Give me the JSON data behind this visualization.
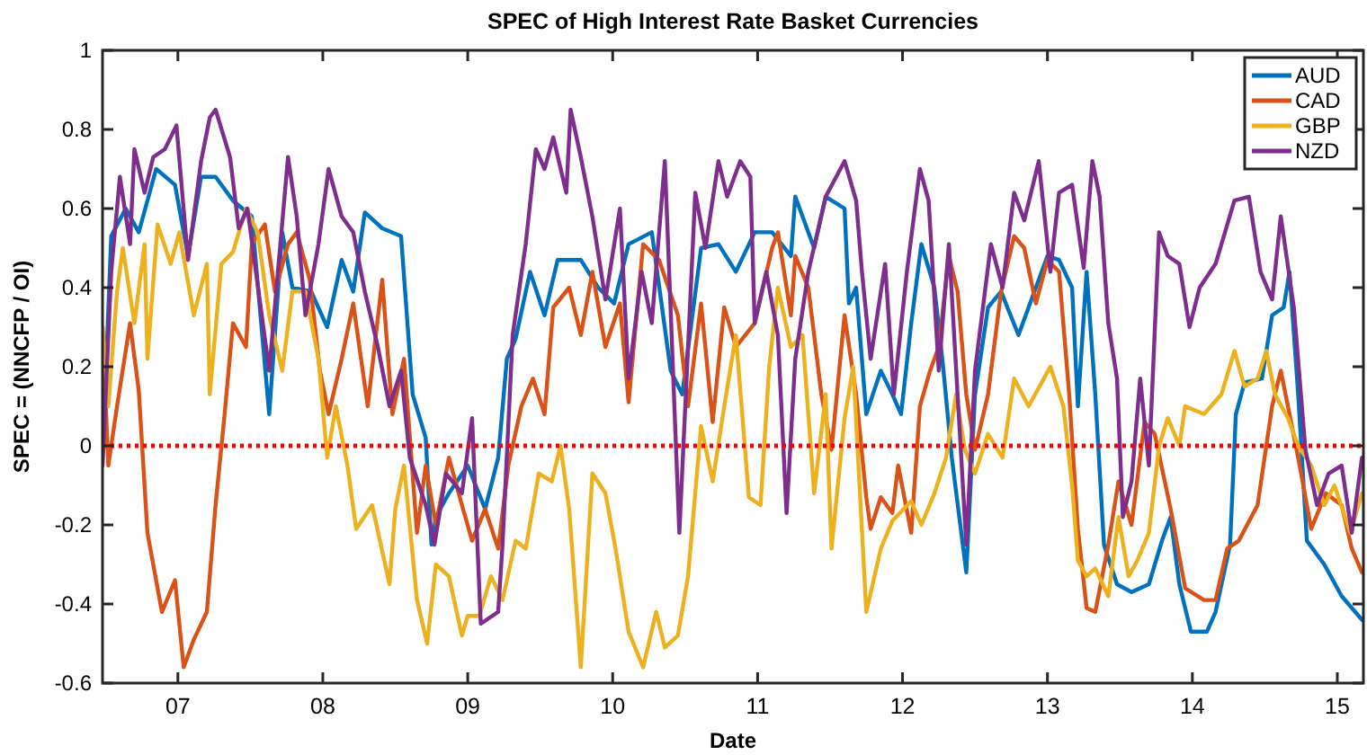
{
  "chart_data": {
    "type": "line",
    "title": "SPEC of High Interest Rate Basket Currencies",
    "xlabel": "Date",
    "ylabel": "SPEC = (NNCFP / OI)",
    "xlim": [
      2006.48,
      2015.18
    ],
    "ylim": [
      -0.6,
      1
    ],
    "xticks": [
      {
        "value": 2007,
        "label": "07"
      },
      {
        "value": 2008,
        "label": "08"
      },
      {
        "value": 2009,
        "label": "09"
      },
      {
        "value": 2010,
        "label": "10"
      },
      {
        "value": 2011,
        "label": "11"
      },
      {
        "value": 2012,
        "label": "12"
      },
      {
        "value": 2013,
        "label": "13"
      },
      {
        "value": 2014,
        "label": "14"
      },
      {
        "value": 2015,
        "label": "15"
      }
    ],
    "yticks": [
      -0.6,
      -0.4,
      -0.2,
      0,
      0.2,
      0.4,
      0.6,
      0.8,
      1
    ],
    "legend": "top right",
    "marker": "none",
    "line_style": "solid",
    "ref_lines": [
      {
        "axis": "y",
        "value": 0,
        "color": "#ff0000",
        "line_style": "dotted"
      }
    ],
    "series": [
      {
        "name": "AUD",
        "color": "#0072bd",
        "x": [
          2006.48,
          2006.54,
          2006.64,
          2006.73,
          2006.85,
          2006.98,
          2007.07,
          2007.16,
          2007.26,
          2007.38,
          2007.51,
          2007.63,
          2007.72,
          2007.79,
          2007.92,
          2008.03,
          2008.13,
          2008.21,
          2008.29,
          2008.41,
          2008.54,
          2008.62,
          2008.71,
          2008.75,
          2008.78,
          2008.87,
          2009.0,
          2009.12,
          2009.21,
          2009.27,
          2009.33,
          2009.43,
          2009.53,
          2009.62,
          2009.78,
          2009.9,
          2010.01,
          2010.11,
          2010.27,
          2010.4,
          2010.48,
          2010.61,
          2010.73,
          2010.85,
          2010.98,
          2011.1,
          2011.23,
          2011.26,
          2011.39,
          2011.47,
          2011.6,
          2011.63,
          2011.68,
          2011.75,
          2011.85,
          2011.93,
          2011.99,
          2012.06,
          2012.13,
          2012.22,
          2012.28,
          2012.34,
          2012.44,
          2012.5,
          2012.59,
          2012.68,
          2012.8,
          2012.92,
          2013.0,
          2013.08,
          2013.17,
          2013.21,
          2013.27,
          2013.33,
          2013.39,
          2013.48,
          2013.58,
          2013.7,
          2013.79,
          2013.85,
          2013.91,
          2013.99,
          2014.1,
          2014.16,
          2014.26,
          2014.3,
          2014.36,
          2014.48,
          2014.55,
          2014.63,
          2014.67,
          2014.73,
          2014.79,
          2014.91,
          2015.03,
          2015.17
        ],
        "values": [
          -0.03,
          0.53,
          0.6,
          0.54,
          0.7,
          0.66,
          0.48,
          0.68,
          0.68,
          0.62,
          0.58,
          0.08,
          0.54,
          0.4,
          0.39,
          0.3,
          0.47,
          0.39,
          0.59,
          0.55,
          0.53,
          0.13,
          0.02,
          -0.25,
          -0.18,
          -0.12,
          -0.05,
          -0.16,
          -0.03,
          0.22,
          0.27,
          0.44,
          0.33,
          0.47,
          0.47,
          0.4,
          0.36,
          0.51,
          0.54,
          0.19,
          0.13,
          0.5,
          0.51,
          0.44,
          0.54,
          0.54,
          0.48,
          0.63,
          0.5,
          0.63,
          0.6,
          0.36,
          0.4,
          0.08,
          0.19,
          0.13,
          0.08,
          0.31,
          0.51,
          0.4,
          0.2,
          -0.03,
          -0.32,
          0.13,
          0.35,
          0.39,
          0.28,
          0.4,
          0.48,
          0.47,
          0.4,
          0.1,
          0.44,
          0.13,
          -0.25,
          -0.35,
          -0.37,
          -0.35,
          -0.24,
          -0.18,
          -0.35,
          -0.47,
          -0.47,
          -0.42,
          -0.25,
          0.08,
          0.16,
          0.17,
          0.33,
          0.35,
          0.44,
          0.13,
          -0.24,
          -0.3,
          -0.38,
          -0.44
        ]
      },
      {
        "name": "CAD",
        "color": "#d95319",
        "x": [
          2006.48,
          2006.52,
          2006.58,
          2006.67,
          2006.73,
          2006.79,
          2006.89,
          2006.98,
          2007.04,
          2007.11,
          2007.2,
          2007.26,
          2007.32,
          2007.38,
          2007.47,
          2007.51,
          2007.6,
          2007.67,
          2007.76,
          2007.82,
          2007.91,
          2007.98,
          2008.04,
          2008.13,
          2008.21,
          2008.31,
          2008.41,
          2008.48,
          2008.56,
          2008.65,
          2008.71,
          2008.78,
          2008.87,
          2008.96,
          2009.03,
          2009.12,
          2009.21,
          2009.28,
          2009.37,
          2009.45,
          2009.53,
          2009.59,
          2009.7,
          2009.78,
          2009.86,
          2009.95,
          2010.05,
          2010.11,
          2010.21,
          2010.32,
          2010.45,
          2010.52,
          2010.61,
          2010.69,
          2010.77,
          2010.85,
          2010.98,
          2011.1,
          2011.14,
          2011.23,
          2011.26,
          2011.35,
          2011.44,
          2011.51,
          2011.6,
          2011.68,
          2011.75,
          2011.78,
          2011.85,
          2011.93,
          2011.97,
          2012.06,
          2012.12,
          2012.19,
          2012.25,
          2012.32,
          2012.38,
          2012.44,
          2012.5,
          2012.59,
          2012.68,
          2012.77,
          2012.84,
          2012.92,
          2013.0,
          2013.08,
          2013.15,
          2013.21,
          2013.27,
          2013.33,
          2013.42,
          2013.49,
          2013.58,
          2013.67,
          2013.74,
          2013.85,
          2013.95,
          2014.08,
          2014.16,
          2014.24,
          2014.32,
          2014.45,
          2014.55,
          2014.61,
          2014.67,
          2014.73,
          2014.82,
          2014.92,
          2015.03,
          2015.1,
          2015.17
        ],
        "values": [
          0.3,
          -0.05,
          0.1,
          0.31,
          0.14,
          -0.22,
          -0.42,
          -0.34,
          -0.56,
          -0.49,
          -0.42,
          -0.15,
          0.07,
          0.31,
          0.25,
          0.51,
          0.56,
          0.39,
          0.51,
          0.54,
          0.42,
          0.19,
          0.08,
          0.22,
          0.36,
          0.1,
          0.42,
          0.08,
          0.22,
          -0.22,
          -0.05,
          -0.2,
          -0.03,
          -0.15,
          -0.24,
          -0.16,
          -0.26,
          -0.05,
          0.1,
          0.17,
          0.08,
          0.35,
          0.4,
          0.28,
          0.44,
          0.25,
          0.36,
          0.11,
          0.51,
          0.47,
          0.33,
          0.1,
          0.36,
          0.06,
          0.35,
          0.25,
          0.31,
          0.5,
          0.54,
          0.33,
          0.48,
          0.4,
          0.13,
          -0.01,
          0.33,
          0.13,
          -0.13,
          -0.21,
          -0.13,
          -0.17,
          -0.05,
          -0.22,
          0.1,
          0.19,
          0.25,
          0.48,
          0.39,
          0.13,
          -0.01,
          0.13,
          0.39,
          0.53,
          0.5,
          0.36,
          0.47,
          0.44,
          0.13,
          -0.21,
          -0.41,
          -0.42,
          -0.25,
          -0.09,
          -0.2,
          0.06,
          0.03,
          -0.16,
          -0.36,
          -0.39,
          -0.39,
          -0.26,
          -0.24,
          -0.15,
          0.1,
          0.19,
          0.08,
          -0.03,
          -0.21,
          -0.12,
          -0.15,
          -0.26,
          -0.32
        ]
      },
      {
        "name": "GBP",
        "color": "#edb120",
        "x": [
          2006.48,
          2006.52,
          2006.58,
          2006.62,
          2006.7,
          2006.77,
          2006.79,
          2006.86,
          2006.95,
          2007.01,
          2007.11,
          2007.2,
          2007.22,
          2007.3,
          2007.38,
          2007.47,
          2007.55,
          2007.63,
          2007.72,
          2007.79,
          2007.88,
          2007.97,
          2008.03,
          2008.09,
          2008.17,
          2008.23,
          2008.34,
          2008.46,
          2008.5,
          2008.56,
          2008.65,
          2008.72,
          2008.78,
          2008.87,
          2008.96,
          2009.0,
          2009.08,
          2009.16,
          2009.24,
          2009.33,
          2009.4,
          2009.49,
          2009.58,
          2009.64,
          2009.7,
          2009.78,
          2009.86,
          2009.95,
          2010.02,
          2010.11,
          2010.21,
          2010.3,
          2010.36,
          2010.45,
          2010.52,
          2010.61,
          2010.69,
          2010.77,
          2010.85,
          2010.94,
          2011.02,
          2011.08,
          2011.14,
          2011.23,
          2011.31,
          2011.39,
          2011.47,
          2011.51,
          2011.6,
          2011.66,
          2011.75,
          2011.85,
          2011.93,
          2012.06,
          2012.13,
          2012.22,
          2012.3,
          2012.37,
          2012.43,
          2012.5,
          2012.59,
          2012.69,
          2012.77,
          2012.87,
          2012.96,
          2013.02,
          2013.11,
          2013.17,
          2013.21,
          2013.27,
          2013.33,
          2013.42,
          2013.49,
          2013.56,
          2013.62,
          2013.7,
          2013.77,
          2013.83,
          2013.91,
          2013.95,
          2014.08,
          2014.2,
          2014.29,
          2014.36,
          2014.45,
          2014.51,
          2014.57,
          2014.66,
          2014.73,
          2014.82,
          2014.91,
          2014.98,
          2015.09,
          2015.17
        ],
        "values": [
          0.3,
          0.1,
          0.39,
          0.5,
          0.31,
          0.51,
          0.22,
          0.56,
          0.46,
          0.54,
          0.33,
          0.46,
          0.13,
          0.46,
          0.49,
          0.6,
          0.54,
          0.33,
          0.19,
          0.39,
          0.39,
          0.22,
          -0.03,
          0.1,
          -0.05,
          -0.21,
          -0.15,
          -0.35,
          -0.16,
          -0.05,
          -0.39,
          -0.5,
          -0.3,
          -0.33,
          -0.48,
          -0.43,
          -0.43,
          -0.33,
          -0.39,
          -0.24,
          -0.26,
          -0.07,
          -0.09,
          0,
          -0.16,
          -0.56,
          -0.07,
          -0.12,
          -0.26,
          -0.47,
          -0.56,
          -0.42,
          -0.51,
          -0.48,
          -0.33,
          0.05,
          -0.09,
          0.1,
          0.28,
          -0.13,
          -0.15,
          0.2,
          0.4,
          0.25,
          0.28,
          -0.12,
          0.13,
          -0.26,
          0.07,
          0.2,
          -0.42,
          -0.26,
          -0.19,
          -0.14,
          -0.2,
          -0.12,
          -0.03,
          0.13,
          -0.01,
          -0.07,
          0.03,
          -0.03,
          0.17,
          0.1,
          0.16,
          0.2,
          0.1,
          -0.1,
          -0.29,
          -0.33,
          -0.31,
          -0.38,
          -0.18,
          -0.33,
          -0.29,
          -0.22,
          0,
          0.07,
          0,
          0.1,
          0.08,
          0.13,
          0.24,
          0.15,
          0.17,
          0.24,
          0.13,
          0.07,
          0,
          -0.05,
          -0.15,
          -0.1,
          -0.22,
          -0.12
        ]
      },
      {
        "name": "NZD",
        "color": "#7e2f8e",
        "x": [
          2006.48,
          2006.54,
          2006.6,
          2006.67,
          2006.7,
          2006.77,
          2006.83,
          2006.91,
          2006.99,
          2007.07,
          2007.16,
          2007.22,
          2007.26,
          2007.36,
          2007.42,
          2007.48,
          2007.63,
          2007.76,
          2007.82,
          2007.88,
          2007.97,
          2008.04,
          2008.13,
          2008.21,
          2008.29,
          2008.38,
          2008.46,
          2008.54,
          2008.6,
          2008.71,
          2008.77,
          2008.85,
          2008.96,
          2009.03,
          2009.09,
          2009.21,
          2009.24,
          2009.31,
          2009.4,
          2009.47,
          2009.53,
          2009.59,
          2009.68,
          2009.71,
          2009.78,
          2009.86,
          2009.95,
          2010.05,
          2010.11,
          2010.2,
          2010.27,
          2010.36,
          2010.46,
          2010.57,
          2010.64,
          2010.73,
          2010.79,
          2010.88,
          2010.95,
          2010.98,
          2011.06,
          2011.14,
          2011.2,
          2011.26,
          2011.35,
          2011.47,
          2011.6,
          2011.68,
          2011.72,
          2011.78,
          2011.88,
          2011.94,
          2012.03,
          2012.12,
          2012.18,
          2012.25,
          2012.32,
          2012.38,
          2012.44,
          2012.5,
          2012.61,
          2012.69,
          2012.77,
          2012.84,
          2012.94,
          2013.02,
          2013.08,
          2013.17,
          2013.25,
          2013.31,
          2013.36,
          2013.42,
          2013.48,
          2013.52,
          2013.58,
          2013.64,
          2013.7,
          2013.77,
          2013.83,
          2013.91,
          2013.98,
          2014.05,
          2014.16,
          2014.29,
          2014.39,
          2014.47,
          2014.55,
          2014.61,
          2014.7,
          2014.78,
          2014.86,
          2014.94,
          2015.03,
          2015.1,
          2015.17
        ],
        "values": [
          -0.05,
          0.44,
          0.68,
          0.51,
          0.75,
          0.64,
          0.73,
          0.75,
          0.81,
          0.47,
          0.72,
          0.83,
          0.85,
          0.73,
          0.55,
          0.6,
          0.19,
          0.73,
          0.58,
          0.33,
          0.51,
          0.7,
          0.58,
          0.54,
          0.39,
          0.25,
          0.1,
          0.19,
          -0.03,
          -0.15,
          -0.25,
          -0.07,
          -0.12,
          0.07,
          -0.45,
          -0.42,
          -0.25,
          0.28,
          0.51,
          0.75,
          0.7,
          0.78,
          0.64,
          0.85,
          0.73,
          0.58,
          0.37,
          0.6,
          0.17,
          0.44,
          0.31,
          0.72,
          -0.22,
          0.64,
          0.5,
          0.72,
          0.63,
          0.72,
          0.68,
          0.31,
          0.44,
          0.28,
          -0.17,
          0.22,
          0.44,
          0.63,
          0.72,
          0.62,
          0.44,
          0.22,
          0.46,
          0.13,
          0.44,
          0.7,
          0.62,
          0.19,
          0.51,
          0.13,
          -0.25,
          0.19,
          0.51,
          0.4,
          0.64,
          0.57,
          0.72,
          0.44,
          0.64,
          0.66,
          0.45,
          0.72,
          0.63,
          0.31,
          0.17,
          -0.18,
          -0.09,
          0.17,
          -0.05,
          0.54,
          0.48,
          0.46,
          0.3,
          0.4,
          0.46,
          0.62,
          0.63,
          0.44,
          0.37,
          0.58,
          0.35,
          -0.01,
          -0.15,
          -0.07,
          -0.05,
          -0.22,
          -0.03
        ]
      }
    ]
  }
}
